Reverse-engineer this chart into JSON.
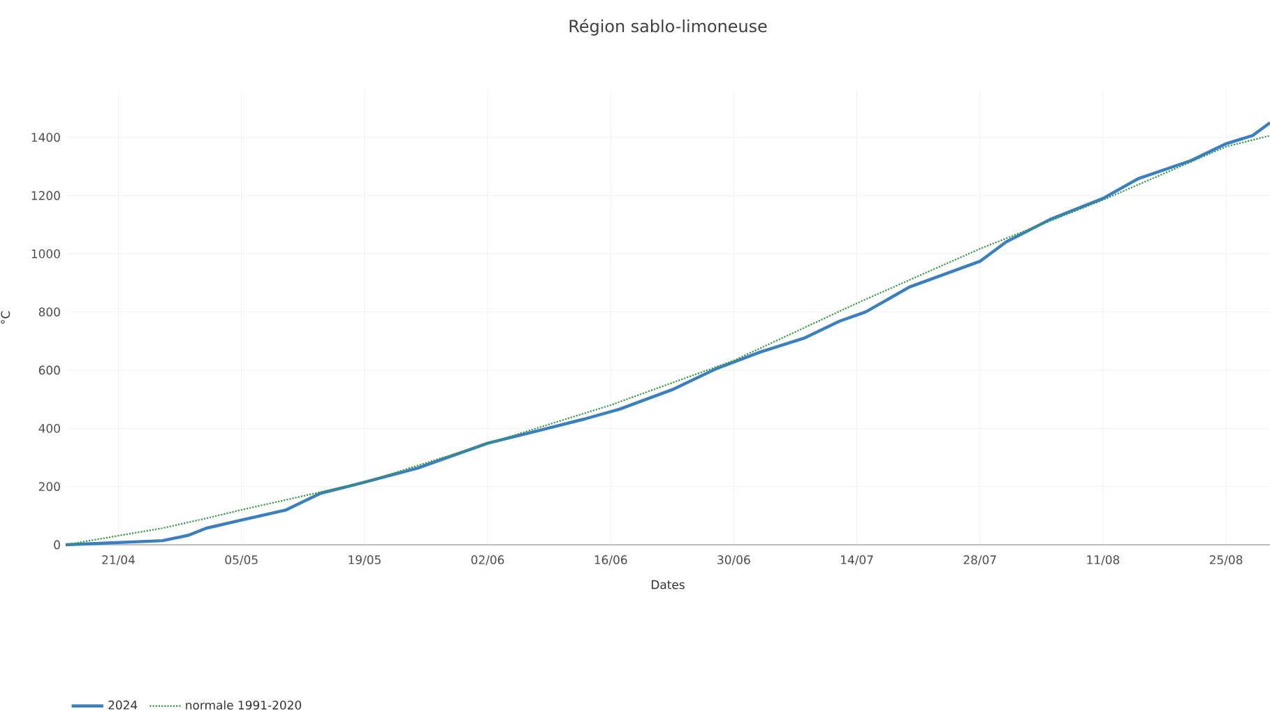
{
  "chart_data": {
    "type": "line",
    "title": "Région sablo-limoneuse",
    "xlabel": "Dates",
    "ylabel": "°C",
    "xlim": [
      "2024-04-15",
      "2024-08-30"
    ],
    "ylim": [
      0,
      1560
    ],
    "xticks": [
      {
        "value": "2024-04-21",
        "label": "21/04"
      },
      {
        "value": "2024-05-05",
        "label": "05/05"
      },
      {
        "value": "2024-05-19",
        "label": "19/05"
      },
      {
        "value": "2024-06-02",
        "label": "02/06"
      },
      {
        "value": "2024-06-16",
        "label": "16/06"
      },
      {
        "value": "2024-06-30",
        "label": "30/06"
      },
      {
        "value": "2024-07-14",
        "label": "14/07"
      },
      {
        "value": "2024-07-28",
        "label": "28/07"
      },
      {
        "value": "2024-08-11",
        "label": "11/08"
      },
      {
        "value": "2024-08-25",
        "label": "25/08"
      }
    ],
    "yticks": [
      0,
      200,
      400,
      600,
      800,
      1000,
      1200,
      1400
    ],
    "grid": true,
    "legend": "bottom left",
    "marker": "none",
    "series": [
      {
        "name": "2024",
        "color": "#3a7fc0",
        "line_style": "solid",
        "x": [
          "2024-04-15",
          "2024-04-26",
          "2024-04-29",
          "2024-05-01",
          "2024-05-05",
          "2024-05-10",
          "2024-05-14",
          "2024-05-19",
          "2024-05-25",
          "2024-06-02",
          "2024-06-08",
          "2024-06-13",
          "2024-06-17",
          "2024-06-23",
          "2024-06-28",
          "2024-07-03",
          "2024-07-08",
          "2024-07-12",
          "2024-07-15",
          "2024-07-20",
          "2024-07-28",
          "2024-07-31",
          "2024-08-05",
          "2024-08-11",
          "2024-08-15",
          "2024-08-21",
          "2024-08-25",
          "2024-08-28",
          "2024-08-30"
        ],
        "values": [
          0,
          14,
          33,
          57,
          85,
          119,
          177,
          215,
          263,
          349,
          394,
          432,
          466,
          533,
          605,
          662,
          710,
          768,
          800,
          886,
          974,
          1041,
          1118,
          1190,
          1258,
          1320,
          1378,
          1406,
          1450
        ]
      },
      {
        "name": "normale 1991-2020",
        "color": "#2e9a3e",
        "line_style": "dotted",
        "x": [
          "2024-04-15",
          "2024-04-26",
          "2024-05-01",
          "2024-05-05",
          "2024-05-19",
          "2024-06-02",
          "2024-06-16",
          "2024-06-30",
          "2024-07-14",
          "2024-07-28",
          "2024-08-11",
          "2024-08-25",
          "2024-08-30"
        ],
        "values": [
          0,
          57,
          91,
          120,
          215,
          348,
          480,
          633,
          830,
          1017,
          1185,
          1368,
          1406
        ]
      }
    ]
  }
}
